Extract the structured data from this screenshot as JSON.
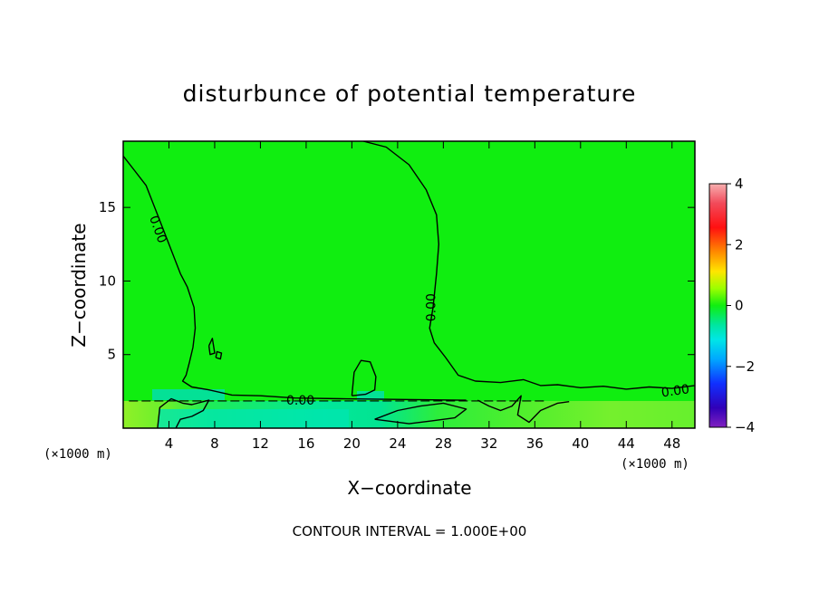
{
  "chart_data": {
    "type": "heatmap",
    "title": "disturbunce of potential temperature",
    "xlabel": "X−coordinate",
    "ylabel": "Z−coordinate",
    "x_unit": "(×1000 m)",
    "z_unit": "(×1000 m)",
    "xlim": [
      0,
      50
    ],
    "ylim": [
      0,
      19.5
    ],
    "x_ticks": [
      "4",
      "8",
      "12",
      "16",
      "20",
      "24",
      "28",
      "32",
      "36",
      "40",
      "44",
      "48"
    ],
    "x_tick_values": [
      4,
      8,
      12,
      16,
      20,
      24,
      28,
      32,
      36,
      40,
      44,
      48
    ],
    "y_ticks": [
      "5",
      "10",
      "15"
    ],
    "y_tick_values": [
      5,
      10,
      15
    ],
    "colorbar": {
      "range": [
        -4,
        4
      ],
      "ticks": [
        "4",
        "2",
        "0",
        "−2",
        "−4"
      ],
      "tick_values": [
        4,
        2,
        0,
        -2,
        -4
      ]
    },
    "contour_interval_text": "CONTOUR INTERVAL = 1.000E+00",
    "contour_labels": [
      {
        "text": "0.00",
        "x": 3.0,
        "z": 13.5,
        "rotate": 70
      },
      {
        "text": "0.00",
        "x": 27.0,
        "z": 8.2,
        "rotate": -90
      },
      {
        "text": "0.00",
        "x": 15.5,
        "z": 1.85,
        "rotate": 0
      },
      {
        "text": "0.00",
        "x": 48.3,
        "z": 2.5,
        "rotate": -8
      }
    ],
    "contours": {
      "left_zero": [
        [
          0,
          18.5
        ],
        [
          1,
          17.5
        ],
        [
          2,
          16.5
        ],
        [
          3,
          14.5
        ],
        [
          4,
          12.5
        ],
        [
          5,
          10.5
        ],
        [
          5.6,
          9.6
        ],
        [
          6.2,
          8.2
        ],
        [
          6.3,
          6.8
        ],
        [
          6.1,
          5.5
        ],
        [
          5.8,
          4.5
        ],
        [
          5.5,
          3.6
        ],
        [
          5.2,
          3.2
        ],
        [
          6.0,
          2.8
        ],
        [
          7.5,
          2.6
        ],
        [
          9.5,
          2.25
        ],
        [
          12,
          2.2
        ],
        [
          15,
          2.05
        ],
        [
          19,
          2.0
        ],
        [
          30,
          1.9
        ]
      ],
      "right_zero": [
        [
          21,
          19.5
        ],
        [
          23,
          19.1
        ],
        [
          25,
          17.9
        ],
        [
          26.5,
          16.2
        ],
        [
          27.4,
          14.5
        ],
        [
          27.6,
          12.5
        ],
        [
          27.4,
          10.5
        ],
        [
          27.1,
          8.2
        ],
        [
          26.8,
          6.8
        ],
        [
          27.2,
          5.8
        ],
        [
          28.2,
          4.8
        ],
        [
          29.3,
          3.6
        ],
        [
          30.8,
          3.2
        ],
        [
          33,
          3.1
        ],
        [
          35,
          3.3
        ],
        [
          36.5,
          2.9
        ],
        [
          38,
          2.95
        ],
        [
          40,
          2.75
        ],
        [
          42,
          2.85
        ],
        [
          44,
          2.65
        ],
        [
          46,
          2.8
        ],
        [
          48,
          2.7
        ],
        [
          50,
          2.9
        ]
      ],
      "hump": [
        [
          20,
          2.2
        ],
        [
          20.2,
          3.8
        ],
        [
          20.8,
          4.6
        ],
        [
          21.6,
          4.5
        ],
        [
          22.1,
          3.5
        ],
        [
          22,
          2.6
        ],
        [
          21.2,
          2.3
        ],
        [
          20,
          2.2
        ]
      ],
      "low_left": [
        [
          3.0,
          0
        ],
        [
          3.2,
          1.4
        ],
        [
          4.2,
          2.0
        ],
        [
          5.2,
          1.7
        ],
        [
          6.0,
          1.6
        ],
        [
          7.5,
          1.9
        ],
        [
          7.0,
          1.2
        ],
        [
          6.0,
          0.8
        ],
        [
          5.0,
          0.6
        ],
        [
          4.6,
          0
        ]
      ],
      "low_mid": [
        [
          22,
          0.6
        ],
        [
          24,
          1.2
        ],
        [
          26,
          1.5
        ],
        [
          28,
          1.7
        ],
        [
          30,
          1.3
        ],
        [
          29,
          0.7
        ],
        [
          27,
          0.5
        ],
        [
          25,
          0.3
        ],
        [
          22,
          0.6
        ]
      ],
      "low_right": [
        [
          31,
          1.9
        ],
        [
          32,
          1.5
        ],
        [
          33,
          1.2
        ],
        [
          34,
          1.5
        ],
        [
          34.8,
          2.2
        ],
        [
          34.5,
          0.9
        ],
        [
          35.5,
          0.4
        ],
        [
          36.5,
          1.2
        ],
        [
          38,
          1.7
        ],
        [
          39,
          1.8
        ]
      ],
      "blob1": [
        [
          7.5,
          5.6
        ],
        [
          7.8,
          6.1
        ],
        [
          8.0,
          5.1
        ],
        [
          7.6,
          5.0
        ],
        [
          7.5,
          5.6
        ]
      ],
      "blob2": [
        [
          8.1,
          4.8
        ],
        [
          8.2,
          5.2
        ],
        [
          8.6,
          5.1
        ],
        [
          8.5,
          4.7
        ],
        [
          8.1,
          4.8
        ]
      ]
    }
  }
}
